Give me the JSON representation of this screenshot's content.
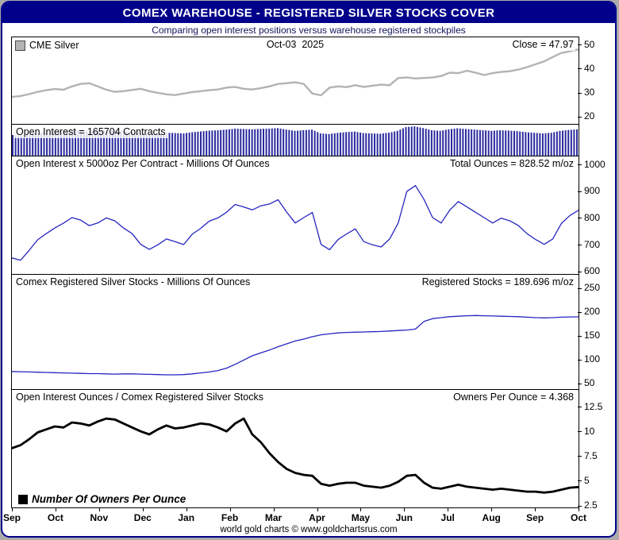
{
  "window": {
    "title": "COMEX WAREHOUSE - REGISTERED SILVER STOCKS COVER",
    "subtitle": "Comparing open interest positions versus warehouse registered stockpiles",
    "footer": "world gold charts © www.goldchartsrus.com"
  },
  "colors": {
    "page_background": "#ababab",
    "frame_border": "#00008B",
    "title_bar": "#00008B",
    "silver_line": "#b3b3b3",
    "blue_line": "#2525c0",
    "bars": "#2a2a9e",
    "owners_line": "#000000"
  },
  "chart_data": {
    "type": "line",
    "title": "COMEX WAREHOUSE - REGISTERED SILVER STOCKS COVER",
    "subtitle": "Comparing open interest positions versus warehouse registered stockpiles",
    "grid": false,
    "legend_position": "inside-panels",
    "x_axis": {
      "labels": [
        "Sep",
        "Oct",
        "Nov",
        "Dec",
        "Jan",
        "Feb",
        "Mar",
        "Apr",
        "May",
        "Jun",
        "Jul",
        "Aug",
        "Sep",
        "Oct"
      ]
    },
    "panels": [
      {
        "id": "price",
        "type": "line",
        "ylim": [
          17,
          53
        ],
        "yticks": [
          20,
          30,
          40,
          50
        ],
        "annotations": {
          "legend": "CME Silver",
          "date": "Oct-03  2025",
          "right": "Close = 47.97"
        },
        "series": [
          {
            "name": "CME Silver",
            "units": "USD/oz",
            "color_key": "silver_line",
            "width": 2.4,
            "values": [
              28.2,
              28.6,
              29.4,
              30.3,
              31.0,
              31.5,
              31.2,
              32.6,
              33.6,
              33.9,
              32.6,
              31.2,
              30.3,
              30.6,
              31.1,
              31.6,
              30.6,
              29.9,
              29.3,
              29.0,
              29.6,
              30.2,
              30.6,
              31.0,
              31.3,
              32.1,
              32.4,
              31.6,
              31.3,
              31.9,
              32.6,
              33.6,
              33.9,
              34.3,
              33.6,
              29.6,
              28.9,
              32.1,
              32.6,
              32.3,
              33.1,
              32.4,
              32.9,
              33.3,
              33.1,
              36.1,
              36.3,
              35.9,
              36.1,
              36.3,
              36.9,
              38.3,
              38.1,
              39.1,
              38.3,
              37.3,
              38.1,
              38.6,
              38.9,
              39.6,
              40.6,
              41.8,
              43.0,
              44.8,
              46.5,
              47.2,
              47.97
            ]
          }
        ]
      },
      {
        "id": "oi-bars",
        "type": "bar",
        "ylim": [
          0,
          195
        ],
        "yticks": [],
        "bar_density": 3,
        "annotations": {
          "left": "Open Interest = 165704 Contracts"
        },
        "series": [
          {
            "name": "Open Interest",
            "units": "thousand contracts",
            "color_key": "bars",
            "width": 2,
            "values": [
              130,
              128.2,
              135.6,
              143.6,
              148.2,
              152.4,
              156,
              160.2,
              158.4,
              154.2,
              156.2,
              160,
              157.8,
              152.4,
              148.2,
              140.2,
              136.4,
              139.8,
              144.2,
              142.2,
              140,
              147.8,
              152.2,
              157.6,
              160,
              164.2,
              170,
              168.2,
              166,
              169,
              170.4,
              173.6,
              164.4,
              156.2,
              160.2,
              164,
              140.2,
              136.2,
              143.8,
              148,
              151.8,
              142.2,
              139.8,
              138.2,
              144.2,
              156.2,
              179.8,
              184.2,
              173.8,
              160.2,
              156.2,
              165.8,
              172.2,
              168.2,
              164.2,
              160.2,
              156.2,
              159.8,
              157.8,
              154.2,
              148.2,
              143.8,
              140.2,
              144.2,
              155.8,
              161.8,
              165.7
            ]
          }
        ]
      },
      {
        "id": "oi-oz",
        "type": "line",
        "ylim": [
          590,
          1030
        ],
        "yticks": [
          600,
          700,
          800,
          900,
          1000
        ],
        "annotations": {
          "left": "Open Interest x 5000oz Per Contract - Millions Of Ounces",
          "right": "Total Ounces = 828.52 m/oz"
        },
        "series": [
          {
            "name": "Open Interest Ounces",
            "units": "millions of ounces",
            "color_key": "blue_line",
            "width": 1.3,
            "values": [
              650,
              641,
              678,
              718,
              741,
              762,
              780,
              801,
              792,
              771,
              781,
              800,
              789,
              762,
              741,
              701,
              682,
              699,
              721,
              711,
              700,
              739,
              761,
              788,
              800,
              821,
              850,
              841,
              830,
              845,
              852,
              868,
              822,
              781,
              801,
              820,
              701,
              681,
              719,
              740,
              759,
              711,
              699,
              691,
              721,
              781,
              899,
              921,
              869,
              801,
              781,
              829,
              861,
              841,
              821,
              801,
              781,
              799,
              789,
              771,
              741,
              719,
              701,
              721,
              779,
              809,
              828.52
            ]
          }
        ]
      },
      {
        "id": "reg",
        "type": "line",
        "ylim": [
          38,
          278
        ],
        "yticks": [
          50,
          100,
          150,
          200,
          250
        ],
        "annotations": {
          "left": "Comex Registered Silver Stocks - Millions Of Ounces",
          "right": "Registered Stocks = 189.696 m/oz"
        },
        "series": [
          {
            "name": "Comex Registered Silver Stocks",
            "units": "millions of ounces",
            "color_key": "blue_line",
            "width": 1.3,
            "values": [
              75,
              74.5,
              74,
              73.5,
              73,
              72.5,
              72,
              71.5,
              71,
              70.5,
              70.5,
              70,
              69.5,
              70,
              70,
              69.5,
              69,
              68.5,
              68,
              68,
              68.5,
              70,
              72,
              74,
              77,
              82,
              90,
              99,
              108,
              114,
              120,
              127,
              133,
              139,
              143,
              148,
              152,
              154,
              156,
              157,
              157.5,
              158,
              158.5,
              159,
              160,
              161,
              162,
              164,
              180,
              186,
              188,
              190,
              191,
              192,
              192.5,
              192,
              191.5,
              191,
              190.5,
              190,
              189,
              188,
              187.5,
              188,
              189,
              189.5,
              189.696
            ]
          }
        ]
      },
      {
        "id": "owners",
        "type": "line",
        "ylim": [
          2.3,
          14.2
        ],
        "yticks": [
          2.5,
          5,
          7.5,
          10,
          12.5
        ],
        "annotations": {
          "left": "Open Interest Ounces / Comex Registered Silver Stocks",
          "right": "Owners Per Ounce = 4.368",
          "legend": "Number Of Owners Per Ounce"
        },
        "series": [
          {
            "name": "Number Of Owners Per Ounce",
            "units": "ratio",
            "color_key": "owners_line",
            "width": 2.8,
            "values": [
              8.3,
              8.6,
              9.2,
              9.9,
              10.2,
              10.5,
              10.4,
              10.9,
              10.8,
              10.6,
              11.0,
              11.3,
              11.2,
              10.8,
              10.4,
              10.0,
              9.7,
              10.2,
              10.6,
              10.3,
              10.4,
              10.6,
              10.8,
              10.7,
              10.4,
              10.0,
              10.8,
              11.3,
              9.7,
              8.9,
              7.8,
              6.9,
              6.2,
              5.8,
              5.6,
              5.5,
              4.7,
              4.5,
              4.7,
              4.8,
              4.8,
              4.5,
              4.4,
              4.3,
              4.5,
              4.9,
              5.5,
              5.6,
              4.8,
              4.3,
              4.2,
              4.4,
              4.6,
              4.4,
              4.3,
              4.2,
              4.1,
              4.2,
              4.1,
              4.0,
              3.9,
              3.9,
              3.8,
              3.9,
              4.1,
              4.3,
              4.368
            ]
          }
        ]
      }
    ]
  }
}
